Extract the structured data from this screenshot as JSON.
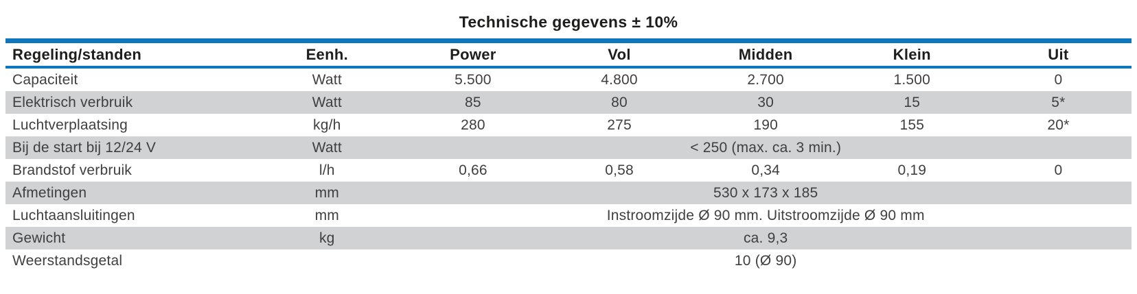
{
  "colors": {
    "accent_blue": "#0e76bc",
    "row_stripe_gray": "#d0d2d3",
    "header_text": "#1d1d1b",
    "body_text": "#3f3f3f"
  },
  "table": {
    "title": "Technische gegevens ± 10%",
    "columns": [
      "Regeling/standen",
      "Eenh.",
      "Power",
      "Vol",
      "Midden",
      "Klein",
      "Uit"
    ],
    "rows": [
      {
        "cells": [
          "Capaciteit",
          "Watt",
          "5.500",
          "4.800",
          "2.700",
          "1.500",
          "0"
        ]
      },
      {
        "cells": [
          "Elektrisch verbruik",
          "Watt",
          "85",
          "80",
          "30",
          "15",
          "5*"
        ]
      },
      {
        "cells": [
          "Luchtverplaatsing",
          "kg/h",
          "280",
          "275",
          "190",
          "155",
          "20*"
        ]
      },
      {
        "label": "Bij de start bij 12/24 V",
        "unit": "Watt",
        "span": "< 250 (max. ca. 3 min.)"
      },
      {
        "cells": [
          "Brandstof verbruik",
          "l/h",
          "0,66",
          "0,58",
          "0,34",
          "0,19",
          "0"
        ]
      },
      {
        "label": "Afmetingen",
        "unit": "mm",
        "span": "530 x 173 x 185"
      },
      {
        "label": "Luchtaansluitingen",
        "unit": "mm",
        "span": "Instroomzijde Ø 90 mm. Uitstroomzijde Ø 90 mm"
      },
      {
        "label": "Gewicht",
        "unit": "kg",
        "span": "ca. 9,3"
      },
      {
        "label": "Weerstandsgetal",
        "unit": "",
        "span": "10 (Ø 90)"
      }
    ]
  }
}
